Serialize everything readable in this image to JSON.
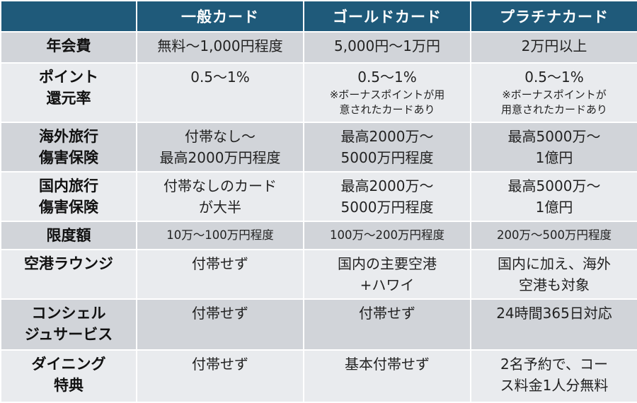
{
  "header": {
    "corner": "",
    "col1": "一般カード",
    "col2": "ゴールドカード",
    "col3": "プラチナカード"
  },
  "rows": [
    {
      "label": [
        "年会費"
      ],
      "c1": [
        "無料〜1,000円程度"
      ],
      "c2": [
        "5,000円〜1万円"
      ],
      "c3": [
        "2万円以上"
      ]
    },
    {
      "label": [
        "ポイント",
        "還元率"
      ],
      "c1": [
        "0.5〜1%"
      ],
      "c2": [
        "0.5〜1%"
      ],
      "c2_note": [
        "※ボーナスポイントが用",
        "意されたカードあり"
      ],
      "c3": [
        "0.5〜1%"
      ],
      "c3_note": [
        "※ボーナスポイントが",
        "用意されたカードあり"
      ]
    },
    {
      "label": [
        "海外旅行",
        "傷害保険"
      ],
      "c1": [
        "付帯なし〜",
        "最高2000万円程度"
      ],
      "c2": [
        "最高2000万〜",
        "5000万円程度"
      ],
      "c3": [
        "最高5000万〜",
        "1億円"
      ]
    },
    {
      "label": [
        "国内旅行",
        "傷害保険"
      ],
      "c1": [
        "付帯なしのカード",
        "が大半"
      ],
      "c2": [
        "最高2000万〜",
        "5000万円程度"
      ],
      "c3": [
        "最高5000万〜",
        "1億円"
      ]
    },
    {
      "label": [
        "限度額"
      ],
      "c1": [
        "10万〜100万円程度"
      ],
      "c2": [
        "100万〜200万円程度"
      ],
      "c3": [
        "200万〜500万円程度"
      ]
    },
    {
      "label": [
        "空港ラウンジ"
      ],
      "c1": [
        "付帯せず"
      ],
      "c2": [
        "国内の主要空港",
        "+ハワイ"
      ],
      "c3": [
        "国内に加え、海外",
        "空港も対象"
      ]
    },
    {
      "label": [
        "コンシェル",
        "ジュサービス"
      ],
      "c1": [
        "付帯せず"
      ],
      "c2": [
        "付帯せず"
      ],
      "c3": [
        "24時間365日対応"
      ]
    },
    {
      "label": [
        "ダイニング",
        "特典"
      ],
      "c1": [
        "付帯せず"
      ],
      "c2": [
        "基本付帯せず"
      ],
      "c3": [
        "2名予約で、コー",
        "ス料金1人分無料"
      ]
    }
  ],
  "colors": {
    "header_bg": "#1f5a7a",
    "row_dark": "#d1d4d9",
    "row_light": "#e9ebee"
  }
}
